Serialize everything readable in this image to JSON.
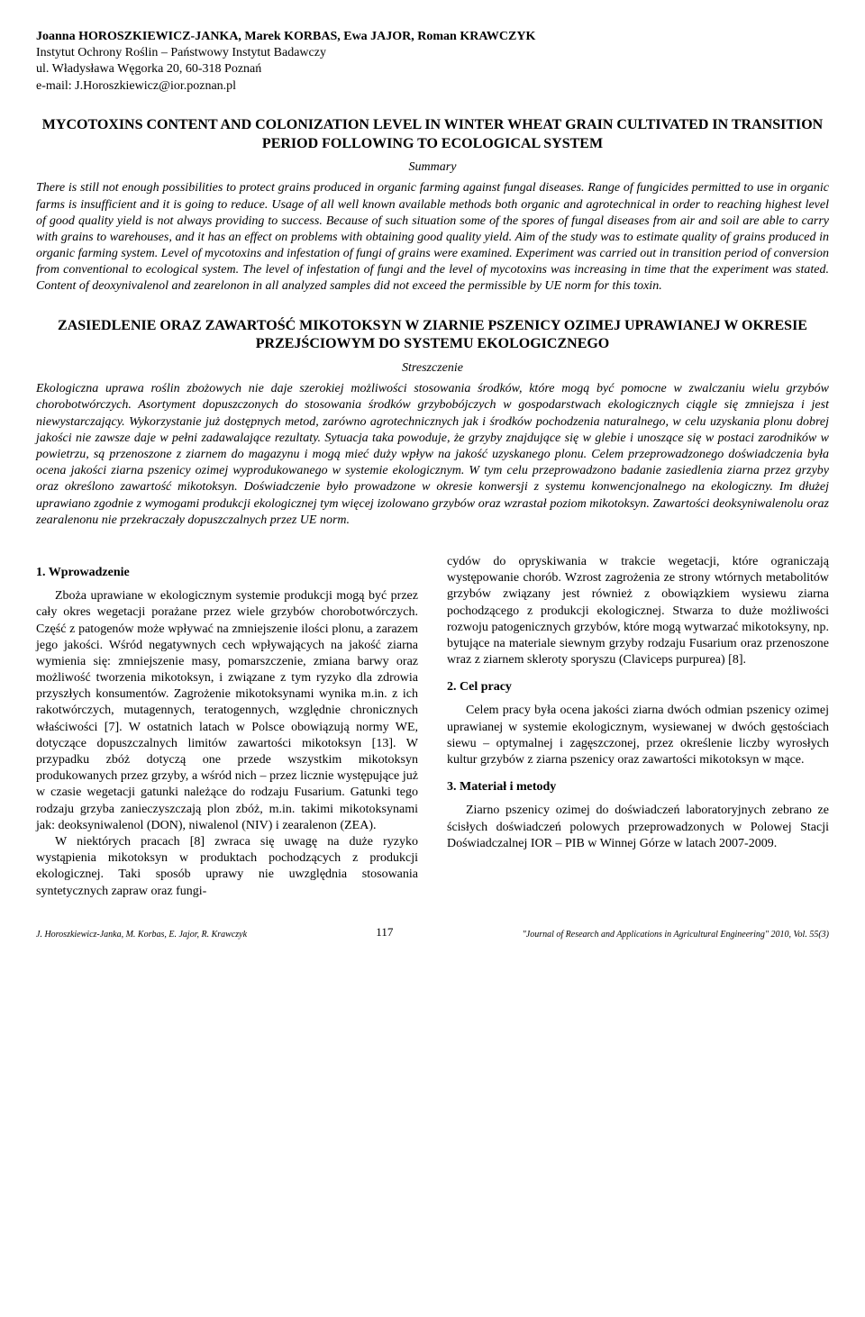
{
  "header": {
    "authors": "Joanna HOROSZKIEWICZ-JANKA, Marek KORBAS, Ewa JAJOR, Roman KRAWCZYK",
    "affiliation1": "Instytut Ochrony Roślin – Państwowy Instytut Badawczy",
    "affiliation2": "ul. Władysława Węgorka 20, 60-318 Poznań",
    "email": "e-mail: J.Horoszkiewicz@ior.poznan.pl"
  },
  "english": {
    "title": "MYCOTOXINS CONTENT AND COLONIZATION LEVEL IN WINTER WHEAT GRAIN CULTIVATED IN TRANSITION PERIOD FOLLOWING TO ECOLOGICAL SYSTEM",
    "summary_label": "Summary",
    "summary_text": "There is still not enough possibilities to protect grains produced in organic farming against fungal diseases. Range of fungicides permitted to use in organic farms is insufficient and it is going to reduce. Usage of all well known available methods both organic and agrotechnical in order to reaching highest level of good quality yield is not always providing to success. Because of such situation some of the spores of fungal diseases from air and soil are able to carry with grains to warehouses, and it has an effect on problems with obtaining good quality yield. Aim of the study was to estimate quality of grains produced in organic farming system. Level of mycotoxins and infestation of fungi of grains were examined. Experiment was carried out in transition period of conversion from conventional to ecological system. The level of infestation of fungi and the level of mycotoxins was increasing in time that the experiment was stated. Content of deoxynivalenol and zearelonon in all analyzed samples did not exceed the permissible by UE norm for this toxin."
  },
  "polish": {
    "title": "ZASIEDLENIE ORAZ ZAWARTOŚĆ MIKOTOKSYN W ZIARNIE PSZENICY OZIMEJ UPRAWIANEJ W OKRESIE PRZEJŚCIOWYM DO SYSTEMU EKOLOGICZNEGO",
    "streszczenie_label": "Streszczenie",
    "streszczenie_text": "Ekologiczna uprawa roślin zbożowych nie daje szerokiej możliwości stosowania środków, które mogą być pomocne w zwalczaniu wielu grzybów chorobotwórczych. Asortyment dopuszczonych do stosowania środków grzybobójczych w gospodarstwach ekologicznych ciągle się zmniejsza i jest niewystarczający. Wykorzystanie już dostępnych metod, zarówno agrotechnicznych jak i środków pochodzenia naturalnego, w celu uzyskania plonu dobrej jakości nie zawsze daje w pełni zadawalające rezultaty. Sytuacja taka powoduje, że grzyby znajdujące się w glebie i unoszące się w postaci zarodników w powietrzu, są przenoszone z ziarnem do magazynu i mogą mieć duży wpływ na jakość uzyskanego plonu. Celem przeprowadzonego doświadczenia była ocena jakości ziarna pszenicy ozimej wyprodukowanego w systemie ekologicznym. W tym celu przeprowadzono badanie zasiedlenia ziarna przez grzyby oraz określono zawartość mikotoksyn. Doświadczenie było prowadzone w okresie konwersji z systemu konwencjonalnego na ekologiczny. Im dłużej uprawiano zgodnie z wymogami produkcji ekologicznej tym więcej izolowano grzybów oraz wzrastał poziom mikotoksyn. Zawartości deoksyniwalenolu oraz zearalenonu nie przekraczały dopuszczalnych przez UE norm."
  },
  "sections": {
    "s1_heading": "1. Wprowadzenie",
    "s1_p1": "Zboża uprawiane w ekologicznym systemie produkcji mogą być przez cały okres wegetacji porażane przez wiele grzybów chorobotwórczych. Część z patogenów może wpływać na zmniejszenie ilości plonu, a zarazem jego jakości. Wśród negatywnych cech wpływających na jakość ziarna wymienia się: zmniejszenie masy, pomarszczenie, zmiana barwy oraz możliwość tworzenia mikotoksyn, i związane z tym ryzyko dla zdrowia przyszłych konsumentów. Zagrożenie mikotoksynami wynika m.in. z ich rakotwórczych, mutagennych, teratogennych, względnie chronicznych właściwości [7]. W ostatnich latach w Polsce obowiązują normy WE, dotyczące dopuszczalnych limitów zawartości mikotoksyn [13]. W przypadku zbóż dotyczą one przede wszystkim mikotoksyn produkowanych przez grzyby, a wśród nich – przez licznie występujące już w czasie wegetacji gatunki należące do rodzaju Fusarium. Gatunki tego rodzaju grzyba zanieczyszczają plon zbóż, m.in. takimi mikotoksynami jak: deoksyniwalenol (DON), niwalenol (NIV) i zearalenon (ZEA).",
    "s1_p2": "W niektórych pracach [8] zwraca się uwagę na duże ryzyko wystąpienia mikotoksyn w produktach pochodzących z produkcji ekologicznej. Taki sposób uprawy nie uwzględnia stosowania syntetycznych zapraw oraz fungi-",
    "s1_p3": "cydów do opryskiwania w trakcie wegetacji, które ograniczają występowanie chorób. Wzrost zagrożenia ze strony wtórnych metabolitów grzybów związany jest również z obowiązkiem wysiewu ziarna pochodzącego z produkcji ekologicznej. Stwarza to duże możliwości rozwoju patogenicznych grzybów, które mogą wytwarzać mikotoksyny, np. bytujące na materiale siewnym grzyby rodzaju Fusarium oraz przenoszone wraz z ziarnem skleroty sporyszu (Claviceps purpurea) [8].",
    "s2_heading": "2. Cel pracy",
    "s2_p1": "Celem pracy była ocena jakości ziarna dwóch odmian pszenicy ozimej uprawianej w systemie ekologicznym, wysiewanej w dwóch gęstościach siewu – optymalnej i zagęszczonej, przez określenie liczby wyrosłych kultur grzybów z ziarna pszenicy oraz zawartości mikotoksyn w mące.",
    "s3_heading": "3. Materiał i metody",
    "s3_p1": "Ziarno pszenicy ozimej do doświadczeń laboratoryjnych zebrano ze ścisłych doświadczeń polowych przeprowadzonych w Polowej Stacji Doświadczalnej IOR – PIB w Winnej Górze w latach 2007-2009."
  },
  "footer": {
    "left": "J. Horoszkiewicz-Janka, M. Korbas, E. Jajor, R. Krawczyk",
    "page": "117",
    "right": "\"Journal of Research and Applications in Agricultural Engineering\" 2010, Vol. 55(3)"
  }
}
